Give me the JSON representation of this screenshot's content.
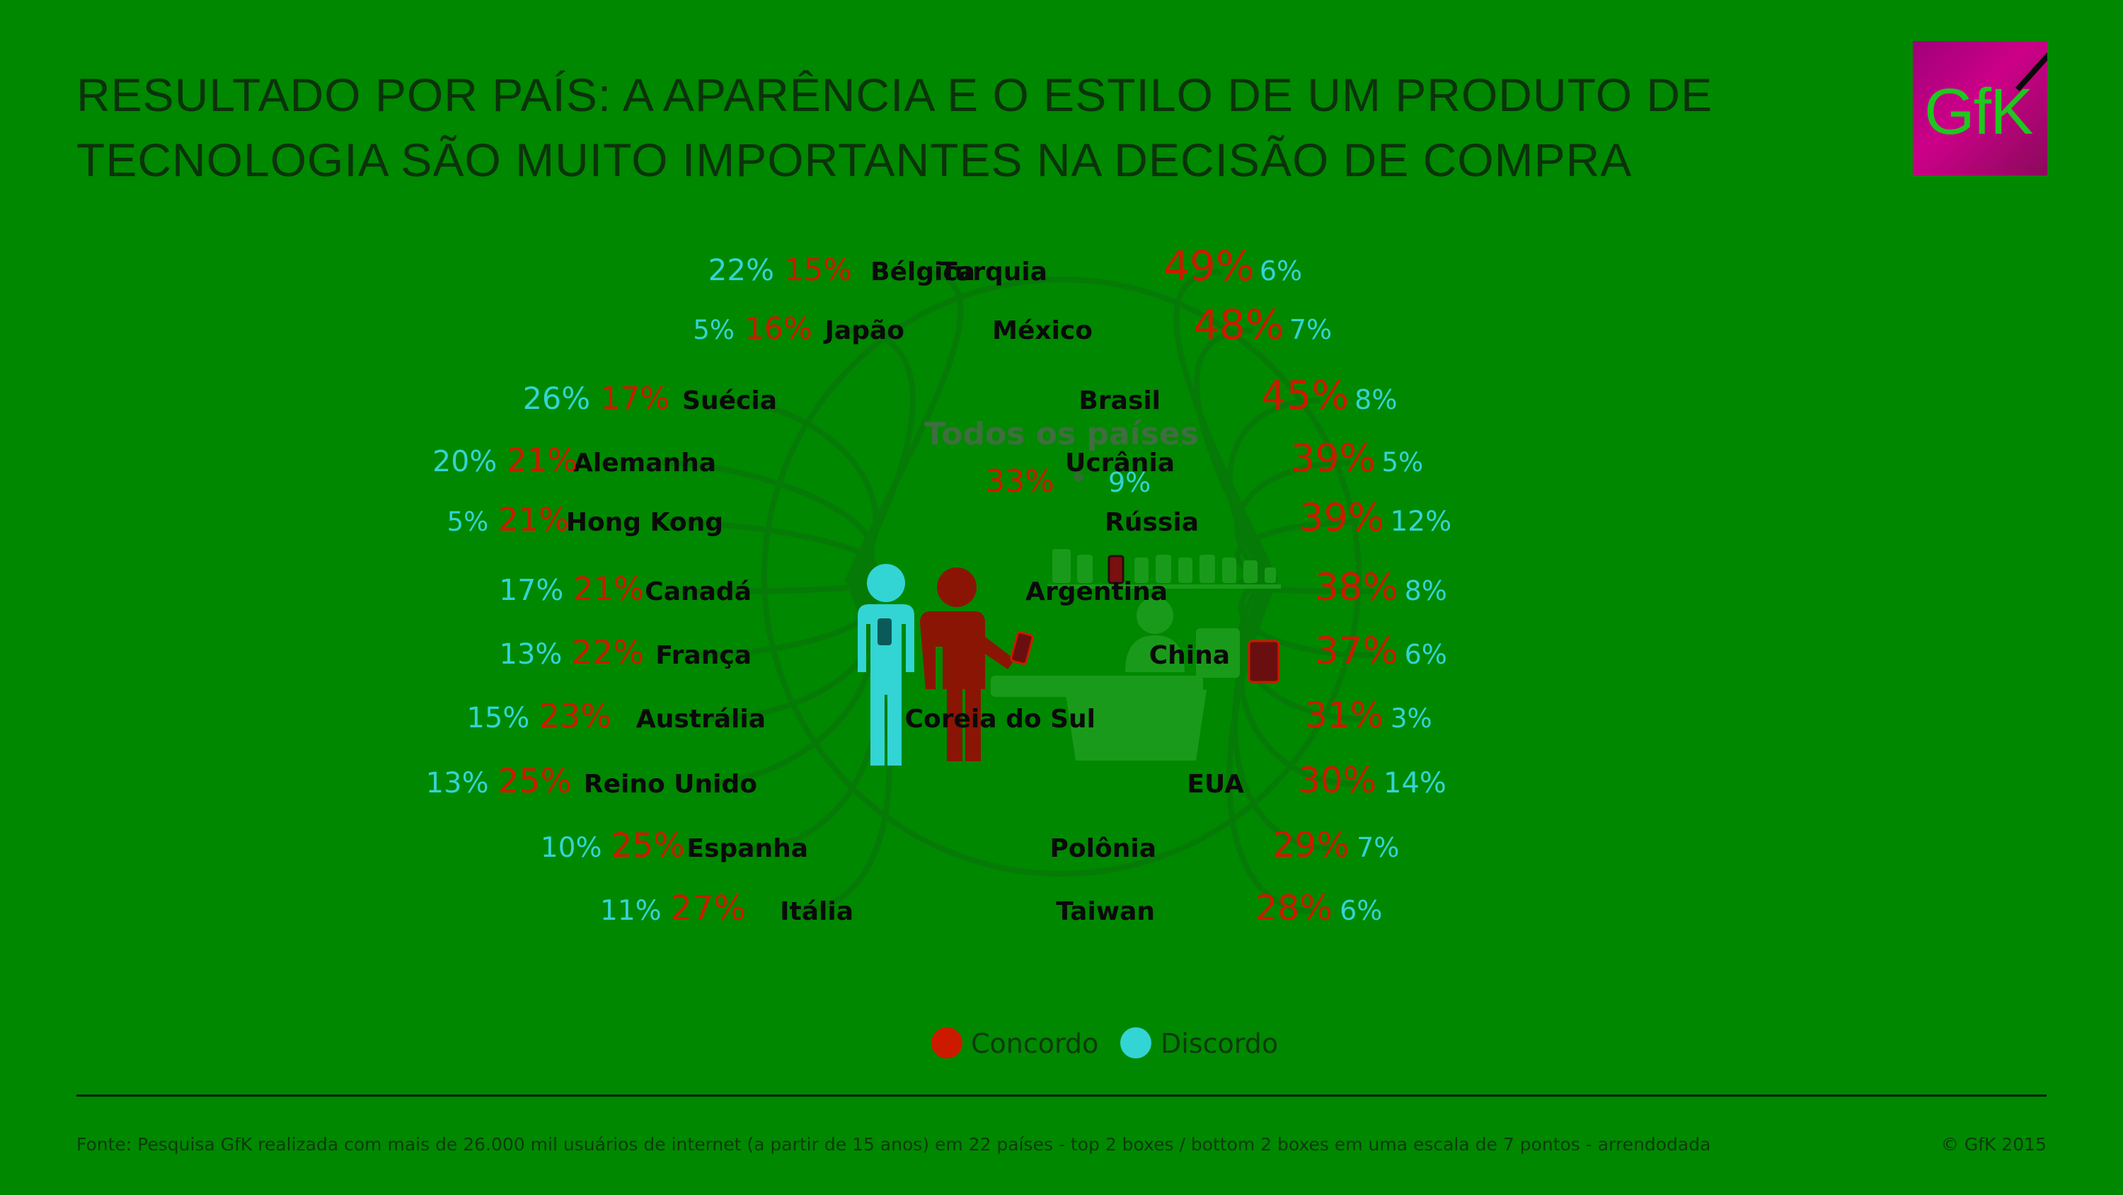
{
  "header": {
    "title_line1": "RESULTADO POR PAÍS: A APARÊNCIA E O ESTILO DE UM PRODUTO DE",
    "title_line2": "TECNOLOGIA SÃO MUITO IMPORTANTES NA DECISÃO DE COMPRA",
    "logo_text": "GfK"
  },
  "colors": {
    "background": "#008800",
    "concordo": "#cc1a00",
    "discordo": "#33d4d4",
    "country_label": "#0a0a0a",
    "center_title": "#3f6e3f"
  },
  "chart_data": {
    "type": "table",
    "overall": {
      "label": "Todos os países",
      "concordo": "33%",
      "discordo": "9%"
    },
    "legend": [
      {
        "name": "Concordo",
        "color": "#cc1a00"
      },
      {
        "name": "Discordo",
        "color": "#33d4d4"
      }
    ],
    "left": [
      {
        "country": "Bélgica",
        "concordo": "15%",
        "discordo": "22%"
      },
      {
        "country": "Japão",
        "concordo": "16%",
        "discordo": "5%"
      },
      {
        "country": "Suécia",
        "concordo": "17%",
        "discordo": "26%"
      },
      {
        "country": "Alemanha",
        "concordo": "21%",
        "discordo": "20%"
      },
      {
        "country": "Hong Kong",
        "concordo": "21%",
        "discordo": "5%"
      },
      {
        "country": "Canadá",
        "concordo": "21%",
        "discordo": "17%"
      },
      {
        "country": "França",
        "concordo": "22%",
        "discordo": "13%"
      },
      {
        "country": "Austrália",
        "concordo": "23%",
        "discordo": "15%"
      },
      {
        "country": "Reino Unido",
        "concordo": "25%",
        "discordo": "13%"
      },
      {
        "country": "Espanha",
        "concordo": "25%",
        "discordo": "10%"
      },
      {
        "country": "Itália",
        "concordo": "27%",
        "discordo": "11%"
      }
    ],
    "right": [
      {
        "country": "Turquia",
        "concordo": "49%",
        "discordo": "6%"
      },
      {
        "country": "México",
        "concordo": "48%",
        "discordo": "7%"
      },
      {
        "country": "Brasil",
        "concordo": "45%",
        "discordo": "8%"
      },
      {
        "country": "Ucrânia",
        "concordo": "39%",
        "discordo": "5%"
      },
      {
        "country": "Rússia",
        "concordo": "39%",
        "discordo": "12%"
      },
      {
        "country": "Argentina",
        "concordo": "38%",
        "discordo": "8%"
      },
      {
        "country": "China",
        "concordo": "37%",
        "discordo": "6%"
      },
      {
        "country": "Coreia do Sul",
        "concordo": "31%",
        "discordo": "3%"
      },
      {
        "country": "EUA",
        "concordo": "30%",
        "discordo": "14%"
      },
      {
        "country": "Polônia",
        "concordo": "29%",
        "discordo": "7%"
      },
      {
        "country": "Taiwan",
        "concordo": "28%",
        "discordo": "6%"
      }
    ]
  },
  "footer": {
    "source": "Fonte: Pesquisa GfK realizada com mais de 26.000 mil usuários de internet (a partir de 15 anos) em 22 países - top 2 boxes / bottom 2 boxes em uma escala de 7 pontos - arrendodada",
    "copyright": "© GfK 2015"
  }
}
